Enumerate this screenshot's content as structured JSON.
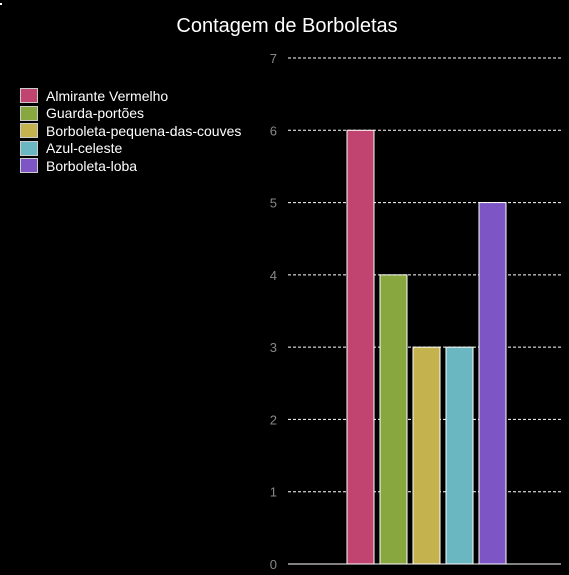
{
  "chart_data": {
    "type": "bar",
    "title": "Contagem de Borboletas",
    "xlabel": "",
    "ylabel": "",
    "ylim": [
      0,
      7
    ],
    "yticks": [
      0,
      1,
      2,
      3,
      4,
      5,
      6,
      7
    ],
    "grid": true,
    "legend_position": "left",
    "categories": [
      "Almirante Vermelho",
      "Guarda-portões",
      "Borboleta-pequena-das-couves",
      "Azul-celeste",
      "Borboleta-loba"
    ],
    "values": [
      6,
      4,
      3,
      3,
      5
    ],
    "colors": [
      "#c0446f",
      "#89a73f",
      "#c4b24e",
      "#6ab6c1",
      "#7d55c4"
    ]
  },
  "style": {
    "background": "#000000",
    "grid_color": "#ffffff",
    "tick_color": "#888888",
    "bar_edge_color": "#ffffff"
  }
}
